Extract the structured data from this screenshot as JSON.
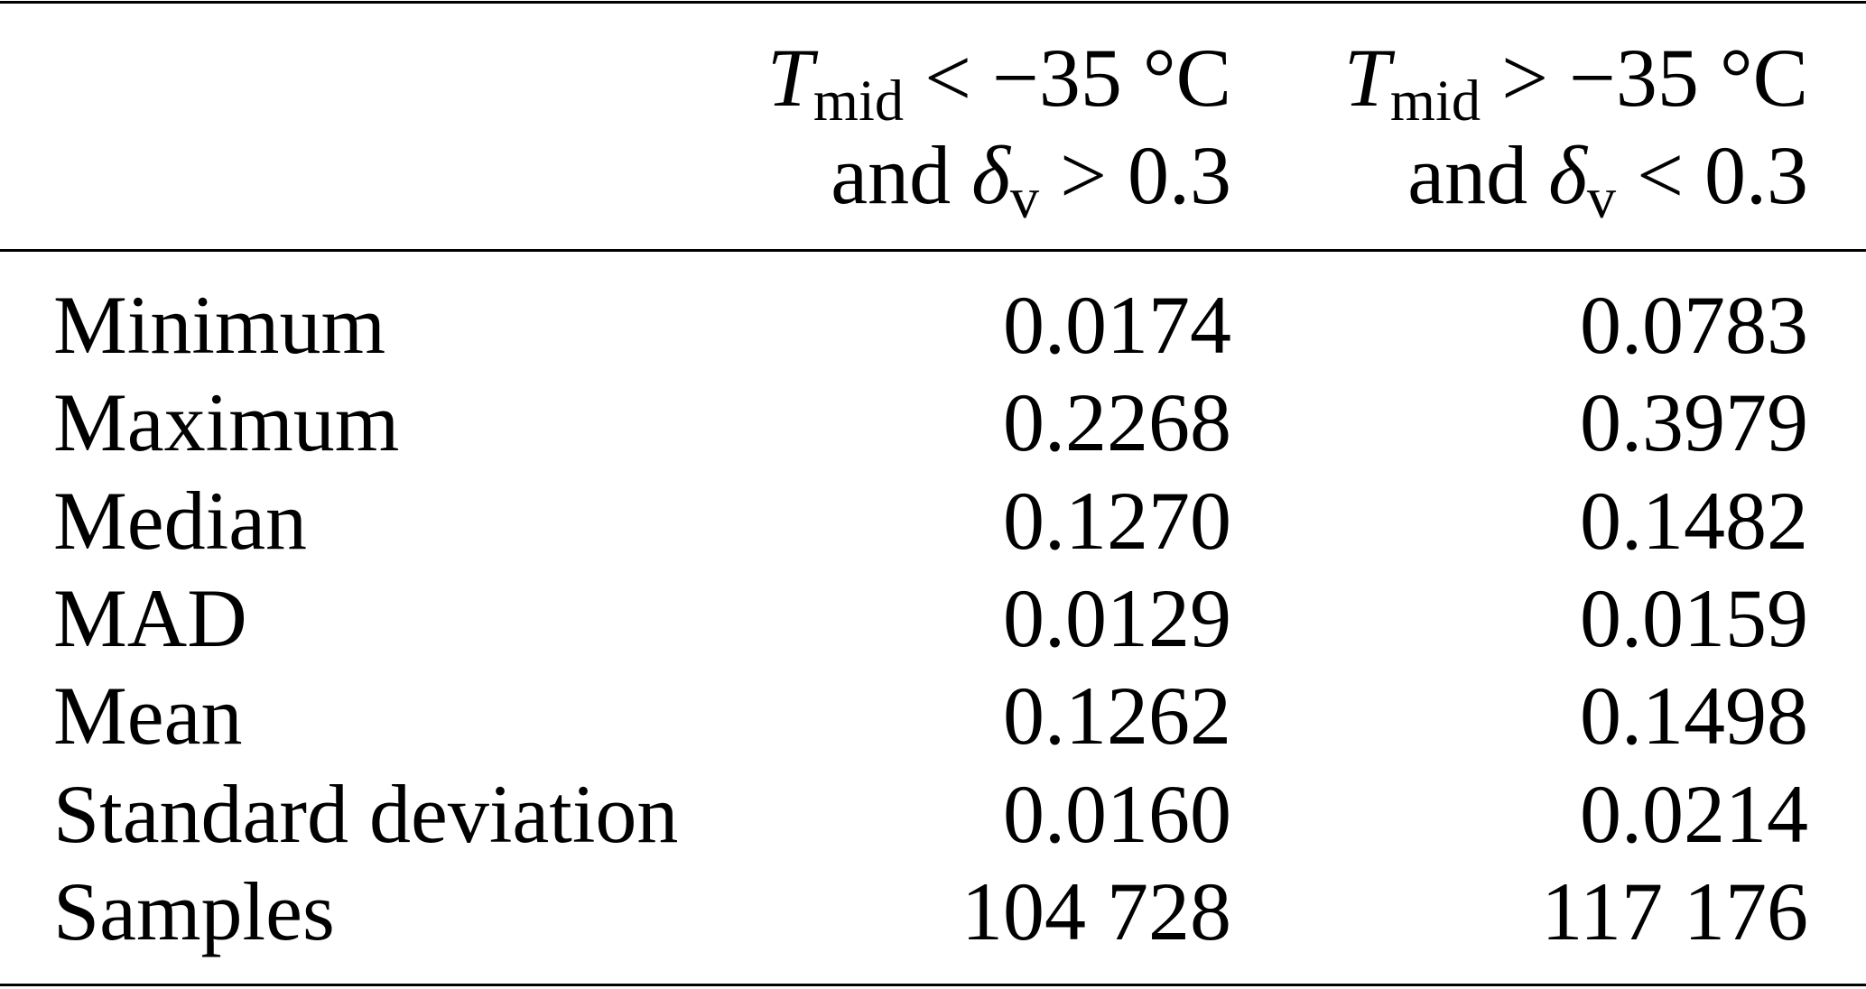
{
  "table": {
    "columns": [
      {
        "line1": {
          "var": "T",
          "sub": "mid",
          "relation": " < −35 °C"
        },
        "line2": {
          "prefix": "and ",
          "var": "δ",
          "sub": "v",
          "relation": " > 0.3"
        }
      },
      {
        "line1": {
          "var": "T",
          "sub": "mid",
          "relation": " > −35 °C"
        },
        "line2": {
          "prefix": "and ",
          "var": "δ",
          "sub": "v",
          "relation": " < 0.3"
        }
      }
    ],
    "rows": [
      {
        "label": "Minimum",
        "values": [
          "0.0174",
          "0.0783"
        ]
      },
      {
        "label": "Maximum",
        "values": [
          "0.2268",
          "0.3979"
        ]
      },
      {
        "label": "Median",
        "values": [
          "0.1270",
          "0.1482"
        ]
      },
      {
        "label": "MAD",
        "values": [
          "0.0129",
          "0.0159"
        ]
      },
      {
        "label": "Mean",
        "values": [
          "0.1262",
          "0.1498"
        ]
      },
      {
        "label": "Standard deviation",
        "values": [
          "0.0160",
          "0.0214"
        ]
      },
      {
        "label": "Samples",
        "values": [
          "104 728",
          "117 176"
        ]
      }
    ]
  }
}
